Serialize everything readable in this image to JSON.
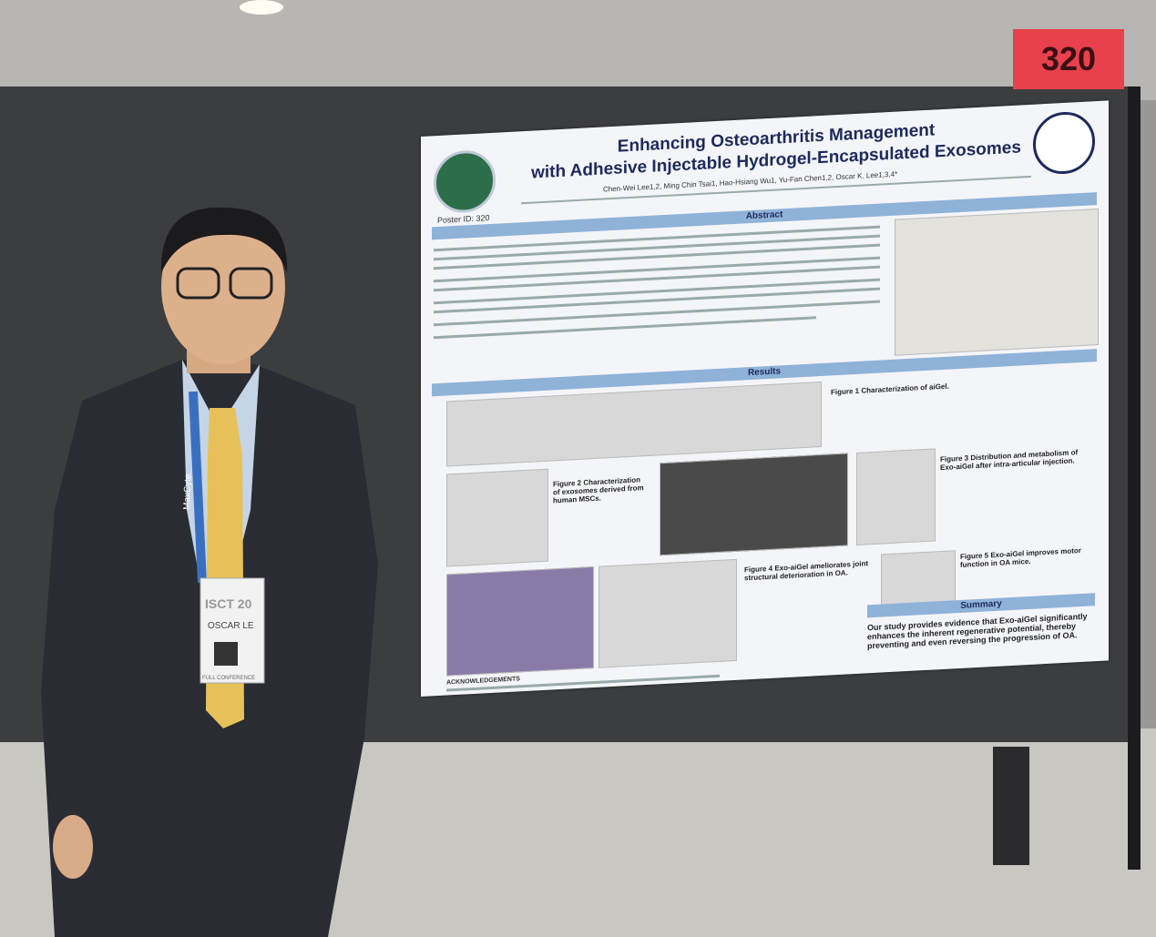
{
  "board_number": "320",
  "poster": {
    "title": [
      "Enhancing Osteoarthritis Management",
      "with Adhesive Injectable Hydrogel-Encapsulated Exosomes"
    ],
    "authors": "Chen-Wei Lee1,2, Ming Chin Tsai1, Hao-Hsiang Wu1, Yu-Fan Chen1,2, Oscar K. Lee1,3,4*",
    "poster_id": "Poster ID: 320",
    "sections": {
      "abstract": "Abstract",
      "results": "Results",
      "summary": "Summary"
    },
    "figure_captions": [
      "Figure 1 Characterization of aiGel.",
      "Figure 2 Characterization of exosomes derived from human MSCs.",
      "Figure 3 Distribution and metabolism of Exo-aiGel after intra-articular injection.",
      "Figure 4 Exo-aiGel ameliorates joint structural deterioration in OA.",
      "Figure 5 Exo-aiGel improves motor function in OA mice."
    ],
    "summary_text": "Our study provides evidence that Exo-aiGel significantly enhances the inherent regenerative potential, thereby preventing and even reversing the progression of OA.",
    "acknowledgements": "ACKNOWLEDGEMENTS"
  },
  "badge": {
    "event": "ISCT 20",
    "name": "OSCAR LE",
    "tier": "FULL CONFERENCE",
    "lanyard": "MaxCyte"
  }
}
